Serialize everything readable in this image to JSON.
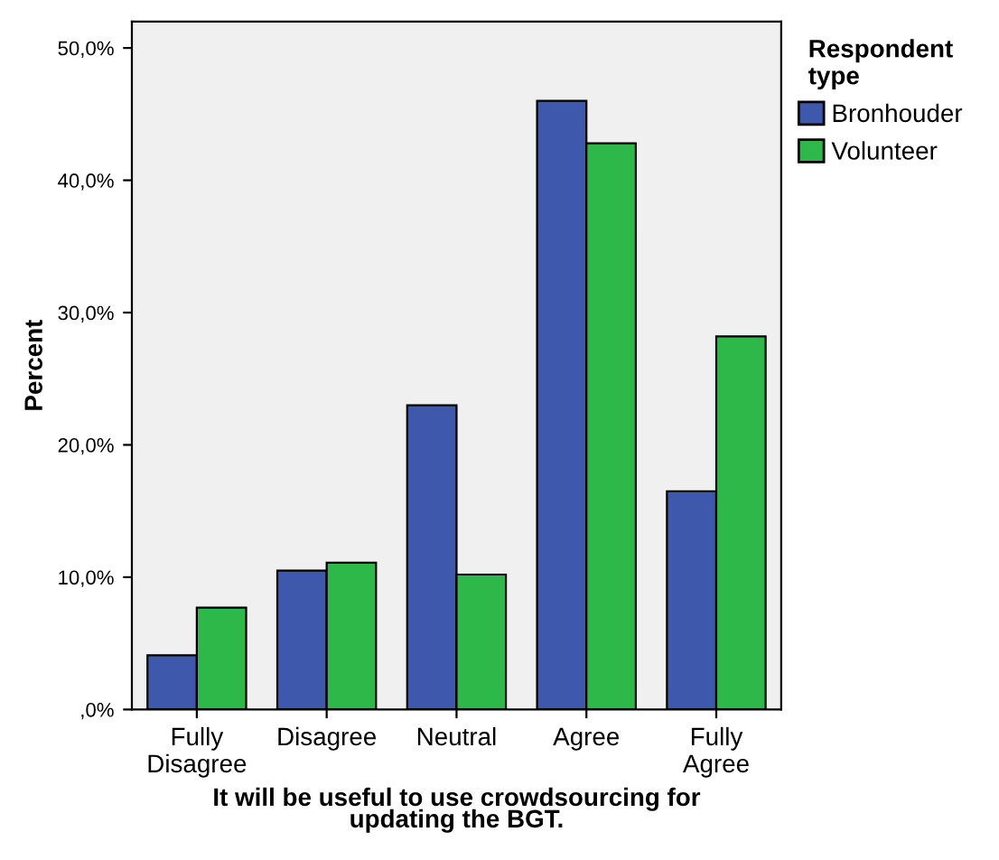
{
  "chart_data": {
    "type": "bar",
    "categories": [
      "Fully\nDisagree",
      "Disagree",
      "Neutral",
      "Agree",
      "Fully\nAgree"
    ],
    "series": [
      {
        "name": "Bronhouder",
        "color": "#3e58ac",
        "values": [
          4.1,
          10.5,
          23.0,
          46.0,
          16.5
        ]
      },
      {
        "name": "Volunteer",
        "color": "#2fb84a",
        "values": [
          7.7,
          11.1,
          10.2,
          42.8,
          28.2
        ]
      }
    ],
    "xlabel": "It will be useful to use crowdsourcing for\nupdating the BGT.",
    "ylabel": "Percent",
    "legend_title": "Respondent\ntype",
    "legend": "right",
    "ylim": [
      0,
      52
    ],
    "yticks": [
      {
        "value": 0,
        "label": ",0%"
      },
      {
        "value": 10,
        "label": "10,0%"
      },
      {
        "value": 20,
        "label": "20,0%"
      },
      {
        "value": 30,
        "label": "30,0%"
      },
      {
        "value": 40,
        "label": "40,0%"
      },
      {
        "value": 50,
        "label": "50,0%"
      }
    ],
    "grid": false
  }
}
